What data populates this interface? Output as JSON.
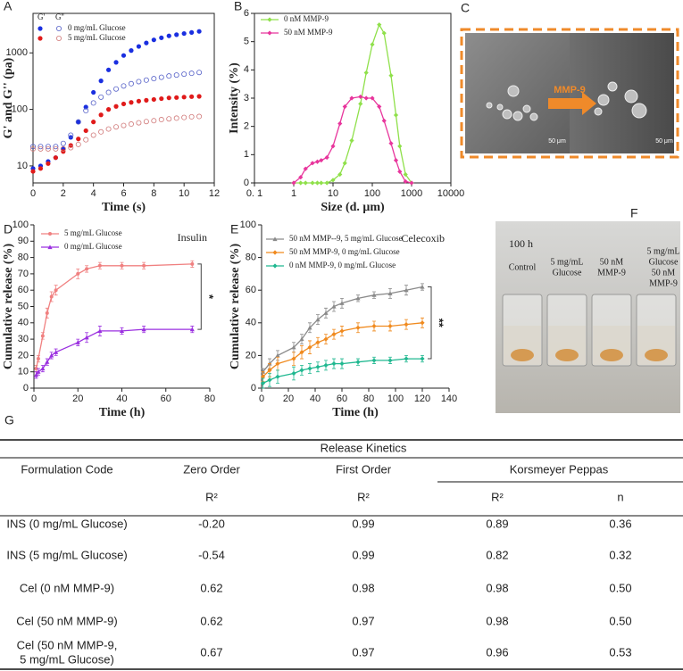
{
  "chart_data": [
    {
      "panel": "A",
      "type": "scatter",
      "xlabel": "Time (s)",
      "ylabel": "G' and G'' (pa)",
      "yscale": "log",
      "box": true,
      "legend_headers": [
        "G'",
        "G''"
      ],
      "legend": "upper-left",
      "x": [
        0,
        0.5,
        1,
        1.5,
        2,
        2.5,
        3,
        3.5,
        4,
        4.5,
        5,
        5.5,
        6,
        6.5,
        7,
        7.5,
        8,
        8.5,
        9,
        9.5,
        10,
        10.5,
        11
      ],
      "series": [
        {
          "name": "0 mg/mL Glucose",
          "color": "#1a2fe0",
          "marker": "filled-circle",
          "values": [
            9,
            10,
            12,
            14,
            20,
            32,
            60,
            110,
            200,
            320,
            500,
            680,
            900,
            1100,
            1300,
            1500,
            1700,
            1850,
            2000,
            2100,
            2200,
            2300,
            2400
          ]
        },
        {
          "color": "#5560c8",
          "marker": "open-circle",
          "values": [
            22,
            22,
            22,
            22,
            25,
            35,
            60,
            95,
            130,
            165,
            200,
            230,
            260,
            285,
            310,
            330,
            350,
            370,
            390,
            405,
            420,
            435,
            450
          ]
        },
        {
          "name": "5 mg/mL Glucose",
          "color": "#e01a1a",
          "marker": "filled-circle",
          "values": [
            8,
            9,
            11,
            14,
            18,
            23,
            30,
            42,
            60,
            80,
            100,
            113,
            125,
            133,
            140,
            145,
            150,
            155,
            160,
            162,
            165,
            168,
            170
          ]
        },
        {
          "color": "#d07878",
          "marker": "open-circle",
          "values": [
            20,
            20,
            20,
            20,
            20,
            21,
            24,
            29,
            35,
            40,
            45,
            49,
            52,
            55,
            58,
            61,
            63,
            66,
            68,
            70,
            72,
            74,
            75
          ]
        }
      ],
      "xlim": [
        0,
        12
      ],
      "xticks": [
        0,
        2,
        4,
        6,
        8,
        10,
        12
      ],
      "ylim": [
        5,
        5000
      ],
      "yticks": [
        10,
        100,
        1000
      ]
    },
    {
      "panel": "B",
      "type": "line",
      "xlabel": "Size (d. μm)",
      "ylabel": "Intensity (%)",
      "xscale": "log",
      "box": true,
      "legend": "upper-left",
      "x": [
        1,
        1.5,
        2,
        3,
        4,
        5,
        7,
        10,
        15,
        20,
        30,
        50,
        70,
        100,
        150,
        200,
        300,
        400,
        500,
        700,
        1000
      ],
      "series": [
        {
          "name": "0 nM MMP-9",
          "color": "#8fe04a",
          "marker": "diamond",
          "values": [
            0,
            0,
            0,
            0,
            0,
            0,
            0,
            0.1,
            0.3,
            0.7,
            1.5,
            2.8,
            3.9,
            4.9,
            5.6,
            5.3,
            3.8,
            2.4,
            1.3,
            0.3,
            0
          ]
        },
        {
          "name": "50 nM MMP-9",
          "color": "#e8359c",
          "marker": "diamond",
          "values": [
            0,
            0.2,
            0.5,
            0.7,
            0.75,
            0.8,
            0.9,
            1.3,
            2.1,
            2.7,
            3,
            3.05,
            3,
            3,
            2.7,
            2.2,
            1.4,
            0.8,
            0.4,
            0.05,
            0
          ]
        }
      ],
      "xlim": [
        0.1,
        10000
      ],
      "xticks": [
        {
          "value": 0.1,
          "label": "0. 1"
        },
        1,
        10,
        100,
        1000,
        10000
      ],
      "ylim": [
        0,
        6
      ],
      "yticks": [
        0,
        1,
        2,
        3,
        4,
        5,
        6
      ]
    },
    {
      "panel": "D",
      "type": "line",
      "xlabel": "Time (h)",
      "ylabel": "Cumulative release (%)",
      "annotation": "Insulin",
      "significance": "*",
      "legend": "upper-left",
      "x": [
        1,
        2,
        4,
        6,
        8,
        10,
        20,
        24,
        30,
        40,
        50,
        72
      ],
      "series": [
        {
          "name": "5 mg/mL Glucose",
          "color": "#f08080",
          "marker": "circle",
          "values": [
            12,
            18,
            32,
            46,
            56,
            60,
            70,
            73,
            75,
            75,
            75,
            76
          ],
          "errors": [
            2,
            2,
            2,
            3,
            3,
            3,
            3,
            2,
            2,
            2,
            2,
            2
          ]
        },
        {
          "name": "0 mg/mL Glucose",
          "color": "#9b30e0",
          "marker": "triangle",
          "values": [
            8,
            10,
            12,
            16,
            20,
            22,
            28,
            31,
            35,
            35,
            36,
            36
          ],
          "errors": [
            2,
            2,
            2,
            2,
            2,
            2,
            2,
            3,
            3,
            2,
            2,
            2
          ]
        }
      ],
      "xlim": [
        0,
        80
      ],
      "xticks": [
        0,
        20,
        40,
        60,
        80
      ],
      "ylim": [
        0,
        100
      ],
      "yticks": [
        0,
        10,
        20,
        30,
        40,
        50,
        60,
        70,
        80,
        90,
        100
      ]
    },
    {
      "panel": "E",
      "type": "line",
      "xlabel": "Time (h)",
      "ylabel": "Cumulative release (%)",
      "annotation": "Celecoxib",
      "significance": "**",
      "legend": "upper-left",
      "x": [
        1,
        6,
        12,
        24,
        30,
        36,
        42,
        48,
        54,
        60,
        72,
        84,
        96,
        108,
        120
      ],
      "series": [
        {
          "name": "50 nM MMP--9, 5 mg/mL Glucose",
          "color": "#8a8a8a",
          "marker": "triangle",
          "values": [
            10,
            15,
            20,
            25,
            30,
            37,
            42,
            46,
            50,
            52,
            55,
            57,
            58,
            60,
            62
          ],
          "errors": [
            2,
            3,
            3,
            3,
            3,
            3,
            3,
            3,
            3,
            3,
            2,
            2,
            3,
            3,
            2
          ]
        },
        {
          "name": "50 nM MMP-9, 0 mg/mL Glucose",
          "color": "#f08a1e",
          "marker": "diamond",
          "values": [
            7,
            11,
            15,
            18,
            22,
            25,
            28,
            30,
            33,
            35,
            37,
            38,
            38,
            39,
            40
          ],
          "errors": [
            3,
            4,
            4,
            4,
            4,
            4,
            3,
            3,
            3,
            3,
            3,
            3,
            3,
            3,
            3
          ]
        },
        {
          "name": "0 nM MMP-9, 0 mg/mL Glucose",
          "color": "#20b890",
          "marker": "diamond",
          "values": [
            3,
            5,
            7,
            9,
            11,
            12,
            13,
            14,
            15,
            15,
            16,
            17,
            17,
            18,
            18
          ],
          "errors": [
            3,
            4,
            4,
            4,
            3,
            3,
            3,
            3,
            3,
            3,
            2,
            2,
            2,
            2,
            2
          ]
        }
      ],
      "xlim": [
        0,
        140
      ],
      "xticks": [
        0,
        20,
        40,
        60,
        80,
        100,
        120,
        140
      ],
      "ylim": [
        0,
        100
      ],
      "yticks": [
        0,
        20,
        40,
        60,
        80,
        100
      ]
    }
  ],
  "panel_c": {
    "label": "C",
    "arrow_text": "MMP-9",
    "scale_bars": [
      "50 μm",
      "50 μm"
    ]
  },
  "panel_f": {
    "label": "F",
    "time": "100 h",
    "beakers": [
      [
        "Control"
      ],
      [
        "5 mg/mL",
        "Glucose"
      ],
      [
        "50 nM",
        "MMP-9"
      ],
      [
        "5 mg/mL",
        "Glucose",
        "50 nM",
        "MMP-9"
      ]
    ]
  },
  "table": {
    "label": "G",
    "title": "Release Kinetics",
    "columns": [
      "Formulation Code",
      "Zero Order",
      "First Order",
      "Korsmeyer Peppas"
    ],
    "subheader": [
      "R²",
      "R²",
      "R²",
      "n"
    ],
    "rows": [
      [
        [
          "INS (0 mg/mL Glucose)"
        ],
        "-0.20",
        "0.99",
        "0.89",
        "0.36"
      ],
      [
        [
          "INS (5 mg/mL Glucose)"
        ],
        "-0.54",
        "0.99",
        "0.82",
        "0.32"
      ],
      [
        [
          "Cel (0 nM MMP-9)"
        ],
        "0.62",
        "0.98",
        "0.98",
        "0.50"
      ],
      [
        [
          "Cel (50 nM MMP-9)"
        ],
        "0.62",
        "0.97",
        "0.98",
        "0.50"
      ],
      [
        [
          "Cel (50 nM MMP-9,",
          "5 mg/mL Glucose)"
        ],
        "0.67",
        "0.97",
        "0.96",
        "0.53"
      ]
    ]
  }
}
